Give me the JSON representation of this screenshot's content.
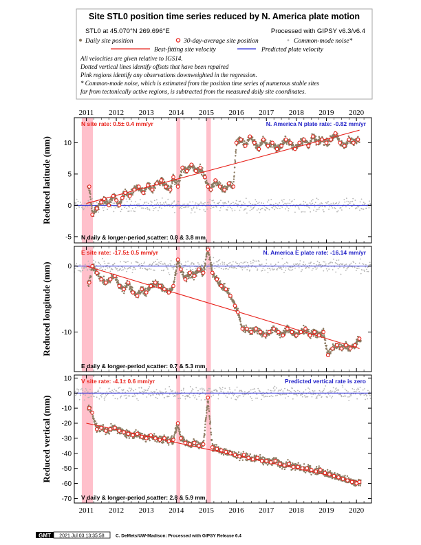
{
  "header": {
    "title": "Site STL0 position time series reduced by N. America plate motion",
    "location": "STL0 at 45.070°N 269.696°E",
    "processing": "Processed with GIPSY v6.3/v6.4",
    "legend": {
      "daily": "Daily site position",
      "average": "30-day-average site position",
      "cm_noise": "Common-mode noise*",
      "best_fit": "Best-fitting site velocity",
      "predicted": "Predicted plate velocity"
    },
    "notes": [
      "All velocities are given relative to IGS14.",
      "Dotted vertical lines identify offsets that have been repaired",
      "Pink regions identify any observations downweighted in the regression.",
      "* Common-mode noise, which is estimated from the position time series of numerous stable sites",
      "far from tectonically active regions, is subtracted from the measured daily site coordinates."
    ]
  },
  "footer": {
    "logo": "GMT",
    "timestamp": "2021 Jul 03 13:35:58",
    "credit": "C. DeMets/UW-Madison: Processed with GIPSY Release 6.4"
  },
  "colors": {
    "daily": "#8c7b62",
    "average_edge": "#e8231c",
    "cm_noise": "#b4b4b4",
    "best_fit": "#e8231c",
    "predicted": "#2b2bd6",
    "downweight": "#ffc0cb",
    "red_label": "#e8231c",
    "blue_label": "#2323c8"
  },
  "chart_data": [
    {
      "type": "scatter",
      "component": "N",
      "ylabel": "Reduced latitude (mm)",
      "ylim": [
        -6,
        14
      ],
      "yticks": [
        -5,
        0,
        5,
        10
      ],
      "xlim": [
        2010.6,
        2020.5
      ],
      "xticks": [
        2011,
        2012,
        2013,
        2014,
        2015,
        2016,
        2017,
        2018,
        2019,
        2020
      ],
      "site_rate_label": "N site rate:  0.5± 0.4 mm/yr",
      "plate_rate_label": "N. America N plate rate: -0.82 mm/yr",
      "scatter_label": "N daily & longer-period scatter:   0.8 &   3.8 mm",
      "pink_regions": [
        [
          2010.85,
          2011.22
        ],
        [
          2014.0,
          2014.13
        ],
        [
          2015.0,
          2015.15
        ]
      ],
      "best_fit": {
        "x": [
          2011.0,
          2020.1
        ],
        "y": [
          0.3,
          12.0
        ]
      },
      "predicted_y": 0,
      "average": {
        "x": [
          2011.1,
          2011.2,
          2011.35,
          2011.5,
          2011.6,
          2011.75,
          2011.9,
          2012.0,
          2012.1,
          2012.2,
          2012.3,
          2012.45,
          2012.6,
          2012.75,
          2012.9,
          2013.05,
          2013.2,
          2013.35,
          2013.5,
          2013.65,
          2013.8,
          2013.9,
          2014.05,
          2014.2,
          2014.35,
          2014.5,
          2014.65,
          2014.8,
          2014.95,
          2015.05,
          2015.15,
          2015.3,
          2015.45,
          2015.6,
          2015.75,
          2015.9,
          2016.0,
          2016.15,
          2016.3,
          2016.45,
          2016.6,
          2016.75,
          2016.9,
          2017.05,
          2017.2,
          2017.35,
          2017.5,
          2017.65,
          2017.8,
          2017.95,
          2018.1,
          2018.25,
          2018.4,
          2018.55,
          2018.7,
          2018.85,
          2019.0,
          2019.15,
          2019.3,
          2019.45,
          2019.6,
          2019.75,
          2019.9,
          2020.05
        ],
        "y": [
          3.0,
          -1.5,
          -0.5,
          0.5,
          1.0,
          0.0,
          1.5,
          0.8,
          0.0,
          1.2,
          2.0,
          1.5,
          2.5,
          3.0,
          2.0,
          3.2,
          2.5,
          3.5,
          4.0,
          3.0,
          2.5,
          4.5,
          3.0,
          6.0,
          5.5,
          6.5,
          5.5,
          6.0,
          4.5,
          3.0,
          2.5,
          4.0,
          3.0,
          2.5,
          3.5,
          3.0,
          10.0,
          10.5,
          9.5,
          11.0,
          10.0,
          9.0,
          10.5,
          9.5,
          10.0,
          9.0,
          9.5,
          10.5,
          10.0,
          9.0,
          10.0,
          10.5,
          9.5,
          11.0,
          10.0,
          10.5,
          10.0,
          10.5,
          11.5,
          10.0,
          9.5,
          10.5,
          10.0,
          10.5
        ]
      }
    },
    {
      "type": "scatter",
      "component": "E",
      "ylabel": "Reduced longitude (mm)",
      "ylim": [
        -16,
        3
      ],
      "yticks": [
        -10,
        0
      ],
      "xlim": [
        2010.6,
        2020.5
      ],
      "xticks": [
        2011,
        2012,
        2013,
        2014,
        2015,
        2016,
        2017,
        2018,
        2019,
        2020
      ],
      "site_rate_label": "E site rate: -17.5± 0.5 mm/yr",
      "plate_rate_label": "N. America E plate rate: -16.14 mm/yr",
      "scatter_label": "E daily & longer-period scatter:   0.7 &   5.3 mm",
      "pink_regions": [
        [
          2010.85,
          2011.22
        ],
        [
          2014.0,
          2014.13
        ],
        [
          2015.0,
          2015.15
        ]
      ],
      "best_fit": {
        "x": [
          2011.0,
          2020.1
        ],
        "y": [
          0.0,
          -12.5
        ]
      },
      "predicted_y": 0,
      "average": {
        "x": [
          2011.1,
          2011.2,
          2011.35,
          2011.5,
          2011.65,
          2011.8,
          2011.95,
          2012.1,
          2012.25,
          2012.4,
          2012.55,
          2012.7,
          2012.85,
          2013.0,
          2013.15,
          2013.3,
          2013.45,
          2013.6,
          2013.75,
          2013.9,
          2014.05,
          2014.15,
          2014.3,
          2014.45,
          2014.6,
          2014.75,
          2014.9,
          2015.05,
          2015.2,
          2015.35,
          2015.5,
          2015.65,
          2015.8,
          2015.95,
          2016.05,
          2016.2,
          2016.35,
          2016.5,
          2016.65,
          2016.8,
          2016.95,
          2017.1,
          2017.25,
          2017.4,
          2017.55,
          2017.7,
          2017.85,
          2018.0,
          2018.15,
          2018.3,
          2018.45,
          2018.6,
          2018.75,
          2018.9,
          2019.05,
          2019.2,
          2019.35,
          2019.5,
          2019.65,
          2019.8,
          2019.95,
          2020.1
        ],
        "y": [
          -2.5,
          0.0,
          -1.0,
          -2.0,
          -2.5,
          -2.0,
          -1.5,
          -3.0,
          -3.5,
          -2.5,
          -4.0,
          -4.5,
          -3.5,
          -4.0,
          -3.0,
          -2.5,
          -3.0,
          -3.5,
          -4.0,
          -3.0,
          1.0,
          -0.5,
          -2.0,
          -1.0,
          -1.5,
          -0.5,
          -1.0,
          2.5,
          -1.0,
          -2.0,
          -3.0,
          -3.5,
          -4.5,
          -6.0,
          -7.0,
          -9.5,
          -9.5,
          -10.0,
          -9.5,
          -10.0,
          -10.5,
          -10.0,
          -9.5,
          -10.0,
          -10.5,
          -9.5,
          -10.0,
          -10.5,
          -10.0,
          -9.5,
          -10.5,
          -10.0,
          -10.5,
          -10.0,
          -13.5,
          -12.5,
          -12.0,
          -12.5,
          -12.0,
          -12.5,
          -12.0,
          -11.0
        ]
      }
    },
    {
      "type": "scatter",
      "component": "V",
      "ylabel": "Reduced vertical (mm)",
      "ylim": [
        -73,
        12
      ],
      "yticks": [
        -70,
        -60,
        -50,
        -40,
        -30,
        -20,
        -10,
        0,
        10
      ],
      "xlim": [
        2010.6,
        2020.5
      ],
      "xticks": [
        2011,
        2012,
        2013,
        2014,
        2015,
        2016,
        2017,
        2018,
        2019,
        2020
      ],
      "xtick_labels": [
        "2011",
        "2012",
        "2013",
        "2014",
        "2015",
        "2016",
        "2017",
        "2018",
        "2019",
        "2020"
      ],
      "site_rate_label": "V site rate:  -4.1± 0.6 mm/yr",
      "plate_rate_label": "Predicted vertical rate is zero",
      "scatter_label": "V daily & longer-period scatter:   2.8 &   5.9 mm",
      "pink_regions": [
        [
          2010.85,
          2011.22
        ],
        [
          2014.0,
          2014.13
        ],
        [
          2015.0,
          2015.15
        ]
      ],
      "best_fit": {
        "x": [
          2011.0,
          2020.1
        ],
        "y": [
          -20.0,
          -59.0
        ]
      },
      "predicted_y": 0,
      "average": {
        "x": [
          2011.1,
          2011.2,
          2011.35,
          2011.5,
          2011.65,
          2011.8,
          2011.95,
          2012.1,
          2012.25,
          2012.4,
          2012.55,
          2012.7,
          2012.85,
          2013.0,
          2013.15,
          2013.3,
          2013.45,
          2013.6,
          2013.75,
          2013.9,
          2014.05,
          2014.15,
          2014.3,
          2014.45,
          2014.6,
          2014.75,
          2014.9,
          2015.05,
          2015.2,
          2015.35,
          2015.5,
          2015.65,
          2015.8,
          2015.95,
          2016.1,
          2016.25,
          2016.4,
          2016.55,
          2016.7,
          2016.85,
          2017.0,
          2017.15,
          2017.3,
          2017.45,
          2017.6,
          2017.75,
          2017.9,
          2018.05,
          2018.2,
          2018.35,
          2018.5,
          2018.65,
          2018.8,
          2018.95,
          2019.1,
          2019.25,
          2019.4,
          2019.55,
          2019.7,
          2019.85,
          2020.0,
          2020.1
        ],
        "y": [
          -10.0,
          -13.0,
          -24.0,
          -23.0,
          -25.0,
          -24.0,
          -23.0,
          -25.0,
          -26.0,
          -27.0,
          -28.0,
          -27.0,
          -29.0,
          -30.0,
          -28.0,
          -30.0,
          -31.0,
          -30.0,
          -32.0,
          -31.0,
          -20.0,
          -30.0,
          -33.0,
          -34.0,
          -33.0,
          -35.0,
          -34.0,
          -3.0,
          -36.0,
          -37.0,
          -38.0,
          -39.0,
          -40.0,
          -41.0,
          -42.0,
          -41.0,
          -43.0,
          -44.0,
          -43.0,
          -45.0,
          -45.0,
          -46.0,
          -45.0,
          -47.0,
          -48.0,
          -47.0,
          -49.0,
          -49.0,
          -50.0,
          -50.0,
          -51.0,
          -52.0,
          -51.0,
          -53.0,
          -54.0,
          -55.0,
          -56.0,
          -57.0,
          -58.0,
          -59.0,
          -60.0,
          -59.0
        ]
      }
    }
  ]
}
